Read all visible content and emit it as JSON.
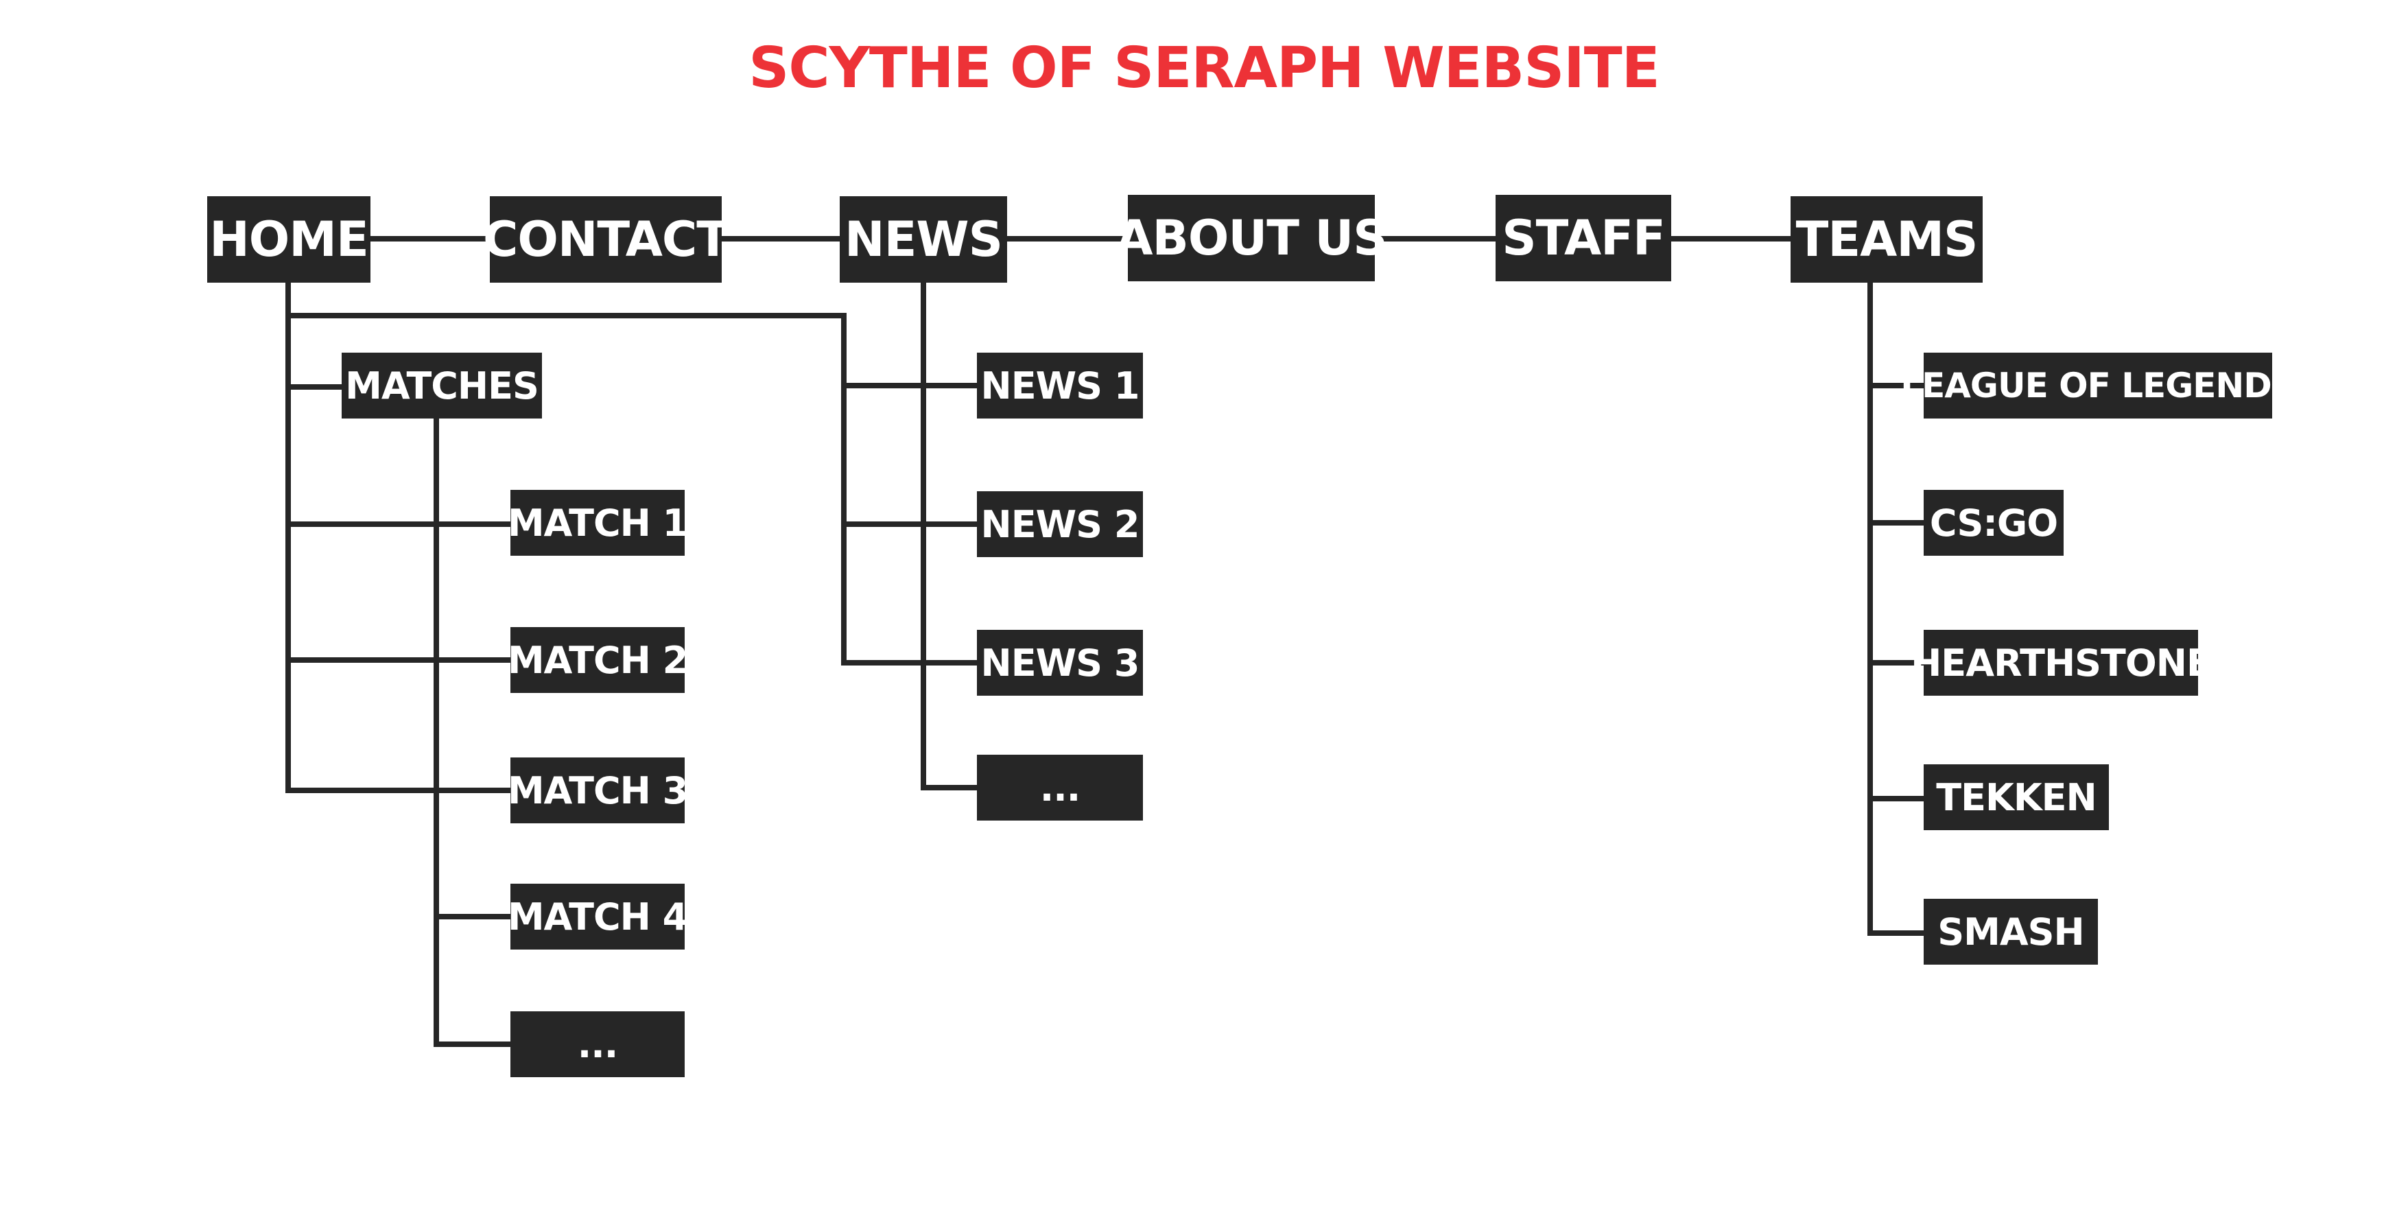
{
  "title": "SCYTHE OF SERAPH WEBSITE",
  "colors": {
    "title": "#ed3237",
    "node_bg": "#262626",
    "node_text": "#ffffff",
    "line": "#262626",
    "background": "#ffffff"
  },
  "nav": {
    "home": "HOME",
    "contact": "CONTACT",
    "news": "NEWS",
    "about": "ABOUT US",
    "staff": "STAFF",
    "teams": "TEAMS"
  },
  "home_children": {
    "matches": "MATCHES",
    "match_items": [
      "MATCH 1",
      "MATCH 2",
      "MATCH 3",
      "MATCH 4",
      "..."
    ]
  },
  "news_children": [
    "NEWS 1",
    "NEWS 2",
    "NEWS 3",
    "..."
  ],
  "team_children": [
    "LEAGUE OF LEGENDS",
    "CS:GO",
    "HEARTHSTONE",
    "TEKKEN",
    "SMASH"
  ]
}
